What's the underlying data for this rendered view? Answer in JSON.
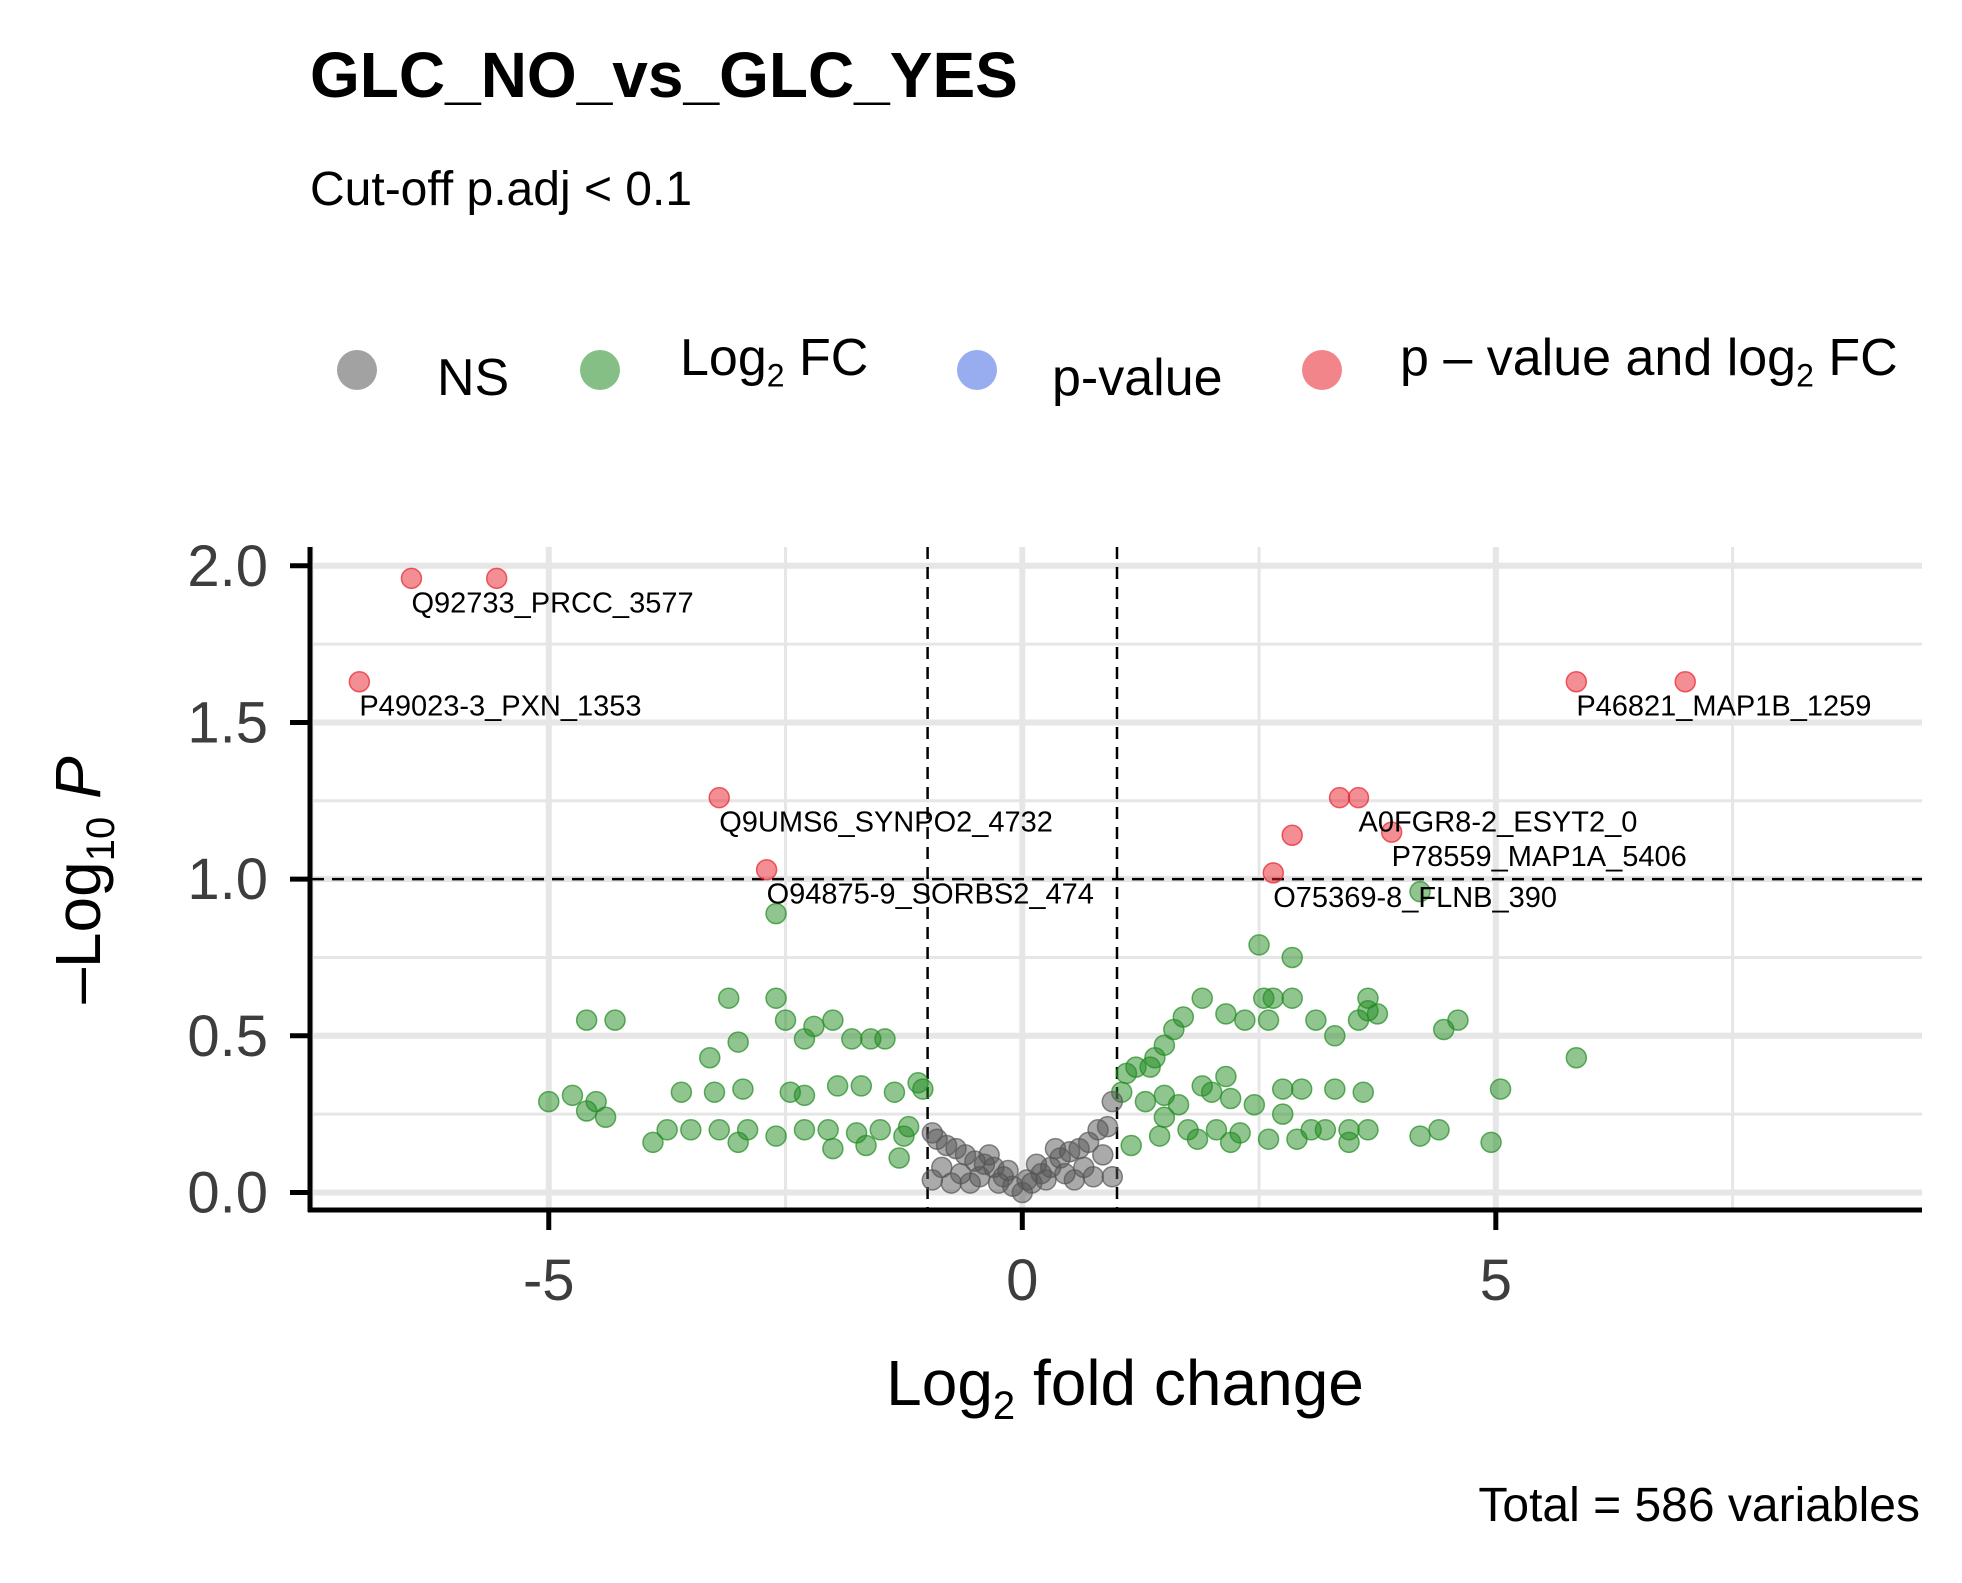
{
  "title": "GLC_NO_vs_GLC_YES",
  "subtitle": "Cut-off p.adj < 0.1",
  "caption": "Total = 586 variables",
  "legend": [
    {
      "key": "NS",
      "label": "NS",
      "color": "#555555"
    },
    {
      "key": "FC",
      "label": "Log",
      "sub": "2",
      "suffix": " FC",
      "color": "#228B22"
    },
    {
      "key": "P",
      "label": "p-value",
      "color": "#4169E1"
    },
    {
      "key": "FC_P",
      "label": "p – value and log",
      "sub": "2",
      "suffix": " FC",
      "color": "#E8202A"
    }
  ],
  "colors": {
    "NS": "#555555",
    "FC": "#228B22",
    "P": "#4169E1",
    "FC_P": "#E8202A"
  },
  "chart_data": {
    "type": "scatter",
    "title": "GLC_NO_vs_GLC_YES",
    "subtitle": "Cut-off p.adj < 0.1",
    "xlabel": "Log2 fold change",
    "ylabel": "-Log10 P",
    "xlim": [
      -7.5,
      9.5
    ],
    "ylim": [
      -0.04,
      2.06
    ],
    "x_ticks": [
      -5,
      0,
      5
    ],
    "x_tick_labels": [
      "-5",
      "0",
      "5"
    ],
    "y_ticks": [
      0,
      0.5,
      1,
      1.5,
      2
    ],
    "y_tick_labels": [
      "0.0",
      "0.5",
      "1.0",
      "1.5",
      "2.0"
    ],
    "grid": true,
    "legend_position": "top",
    "fc_cutoffs": [
      -1,
      1
    ],
    "p_cutoff": 1.0,
    "series": [
      {
        "name": "p – value and log2 FC",
        "category": "FC_P",
        "points": [
          [
            -6.45,
            1.96
          ],
          [
            -5.55,
            1.96
          ],
          [
            -7.0,
            1.63
          ],
          [
            -3.2,
            1.26
          ],
          [
            -2.7,
            1.03
          ],
          [
            5.85,
            1.63
          ],
          [
            7.0,
            1.63
          ],
          [
            3.35,
            1.26
          ],
          [
            3.55,
            1.26
          ],
          [
            2.85,
            1.14
          ],
          [
            3.9,
            1.15
          ],
          [
            2.65,
            1.02
          ]
        ]
      },
      {
        "name": "Log2 FC",
        "category": "FC",
        "points": [
          [
            -2.6,
            0.89
          ],
          [
            4.2,
            0.96
          ],
          [
            2.5,
            0.79
          ],
          [
            2.85,
            0.75
          ],
          [
            5.85,
            0.43
          ],
          [
            -4.6,
            0.55
          ],
          [
            -4.3,
            0.55
          ],
          [
            -3.1,
            0.62
          ],
          [
            -2.6,
            0.62
          ],
          [
            -2.3,
            0.49
          ],
          [
            -2.0,
            0.55
          ],
          [
            -1.8,
            0.49
          ],
          [
            -1.6,
            0.49
          ],
          [
            -1.45,
            0.49
          ],
          [
            -3.0,
            0.48
          ],
          [
            -3.3,
            0.43
          ],
          [
            -2.5,
            0.55
          ],
          [
            -2.2,
            0.53
          ],
          [
            -3.6,
            0.32
          ],
          [
            -3.25,
            0.32
          ],
          [
            -2.95,
            0.33
          ],
          [
            -2.45,
            0.32
          ],
          [
            -2.3,
            0.31
          ],
          [
            -1.95,
            0.34
          ],
          [
            -1.7,
            0.34
          ],
          [
            -1.35,
            0.32
          ],
          [
            -1.1,
            0.35
          ],
          [
            -1.05,
            0.33
          ],
          [
            -5.0,
            0.29
          ],
          [
            -4.75,
            0.31
          ],
          [
            -4.5,
            0.29
          ],
          [
            -4.4,
            0.24
          ],
          [
            -4.6,
            0.26
          ],
          [
            -3.9,
            0.16
          ],
          [
            -3.75,
            0.2
          ],
          [
            -3.5,
            0.2
          ],
          [
            -3.2,
            0.2
          ],
          [
            -2.9,
            0.2
          ],
          [
            -2.6,
            0.18
          ],
          [
            -2.3,
            0.2
          ],
          [
            -2.05,
            0.2
          ],
          [
            -1.75,
            0.19
          ],
          [
            -1.5,
            0.2
          ],
          [
            -1.25,
            0.18
          ],
          [
            -1.2,
            0.21
          ],
          [
            -1.3,
            0.11
          ],
          [
            -1.65,
            0.15
          ],
          [
            -3.0,
            0.16
          ],
          [
            -2.0,
            0.14
          ],
          [
            1.9,
            0.62
          ],
          [
            2.15,
            0.57
          ],
          [
            2.35,
            0.55
          ],
          [
            1.7,
            0.56
          ],
          [
            1.6,
            0.52
          ],
          [
            1.5,
            0.47
          ],
          [
            1.4,
            0.43
          ],
          [
            1.35,
            0.4
          ],
          [
            1.2,
            0.4
          ],
          [
            1.1,
            0.38
          ],
          [
            1.05,
            0.32
          ],
          [
            1.5,
            0.31
          ],
          [
            1.65,
            0.28
          ],
          [
            1.9,
            0.34
          ],
          [
            2.0,
            0.32
          ],
          [
            2.15,
            0.37
          ],
          [
            2.2,
            0.3
          ],
          [
            2.45,
            0.28
          ],
          [
            2.75,
            0.33
          ],
          [
            2.75,
            0.25
          ],
          [
            2.95,
            0.33
          ],
          [
            2.55,
            0.62
          ],
          [
            2.65,
            0.62
          ],
          [
            2.6,
            0.55
          ],
          [
            2.85,
            0.62
          ],
          [
            3.1,
            0.55
          ],
          [
            3.3,
            0.5
          ],
          [
            3.55,
            0.55
          ],
          [
            3.65,
            0.58
          ],
          [
            3.75,
            0.57
          ],
          [
            3.65,
            0.62
          ],
          [
            3.6,
            0.32
          ],
          [
            3.3,
            0.33
          ],
          [
            3.2,
            0.2
          ],
          [
            3.45,
            0.2
          ],
          [
            3.45,
            0.16
          ],
          [
            3.65,
            0.2
          ],
          [
            4.45,
            0.52
          ],
          [
            4.6,
            0.55
          ],
          [
            5.05,
            0.33
          ],
          [
            4.2,
            0.18
          ],
          [
            4.4,
            0.2
          ],
          [
            4.95,
            0.16
          ],
          [
            1.3,
            0.29
          ],
          [
            1.5,
            0.24
          ],
          [
            1.75,
            0.2
          ],
          [
            2.05,
            0.2
          ],
          [
            2.3,
            0.19
          ],
          [
            2.6,
            0.17
          ],
          [
            2.9,
            0.17
          ],
          [
            3.05,
            0.2
          ],
          [
            1.15,
            0.15
          ],
          [
            1.45,
            0.18
          ],
          [
            1.85,
            0.17
          ],
          [
            2.2,
            0.16
          ]
        ]
      },
      {
        "name": "NS",
        "category": "NS",
        "points": [
          [
            0.0,
            0.0
          ],
          [
            -0.1,
            0.02
          ],
          [
            0.1,
            0.03
          ],
          [
            -0.2,
            0.05
          ],
          [
            0.2,
            0.06
          ],
          [
            -0.3,
            0.08
          ],
          [
            0.3,
            0.08
          ],
          [
            -0.4,
            0.09
          ],
          [
            0.4,
            0.11
          ],
          [
            -0.5,
            0.1
          ],
          [
            0.5,
            0.13
          ],
          [
            -0.6,
            0.12
          ],
          [
            0.6,
            0.14
          ],
          [
            -0.7,
            0.14
          ],
          [
            0.7,
            0.16
          ],
          [
            -0.8,
            0.15
          ],
          [
            0.8,
            0.2
          ],
          [
            -0.9,
            0.17
          ],
          [
            0.9,
            0.21
          ],
          [
            -0.95,
            0.19
          ],
          [
            0.95,
            0.29
          ],
          [
            -0.25,
            0.03
          ],
          [
            0.25,
            0.04
          ],
          [
            -0.45,
            0.05
          ],
          [
            0.45,
            0.06
          ],
          [
            -0.65,
            0.06
          ],
          [
            0.65,
            0.08
          ],
          [
            -0.85,
            0.08
          ],
          [
            0.85,
            0.12
          ],
          [
            -0.55,
            0.03
          ],
          [
            0.55,
            0.04
          ],
          [
            -0.75,
            0.03
          ],
          [
            0.75,
            0.05
          ],
          [
            -0.95,
            0.04
          ],
          [
            0.95,
            0.05
          ],
          [
            -0.35,
            0.12
          ],
          [
            0.35,
            0.14
          ],
          [
            -0.15,
            0.07
          ],
          [
            0.15,
            0.09
          ],
          [
            0.05,
            0.04
          ]
        ]
      }
    ],
    "labels": [
      {
        "text": "Q92733_PRCC_3577",
        "x": -6.45,
        "y": 1.96
      },
      {
        "text": "P49023-3_PXN_1353",
        "x": -7.0,
        "y": 1.63
      },
      {
        "text": "Q9UMS6_SYNPO2_4732",
        "x": -3.2,
        "y": 1.26
      },
      {
        "text": "O94875-9_SORBS2_474",
        "x": -2.7,
        "y": 1.03
      },
      {
        "text": "P46821_MAP1B_1259",
        "x": 5.85,
        "y": 1.63
      },
      {
        "text": "A0FGR8-2_ESYT2_0",
        "x": 3.55,
        "y": 1.26
      },
      {
        "text": "P78559_MAP1A_5406",
        "x": 3.9,
        "y": 1.15
      },
      {
        "text": "O75369-8_FLNB_390",
        "x": 2.65,
        "y": 1.02
      }
    ]
  }
}
